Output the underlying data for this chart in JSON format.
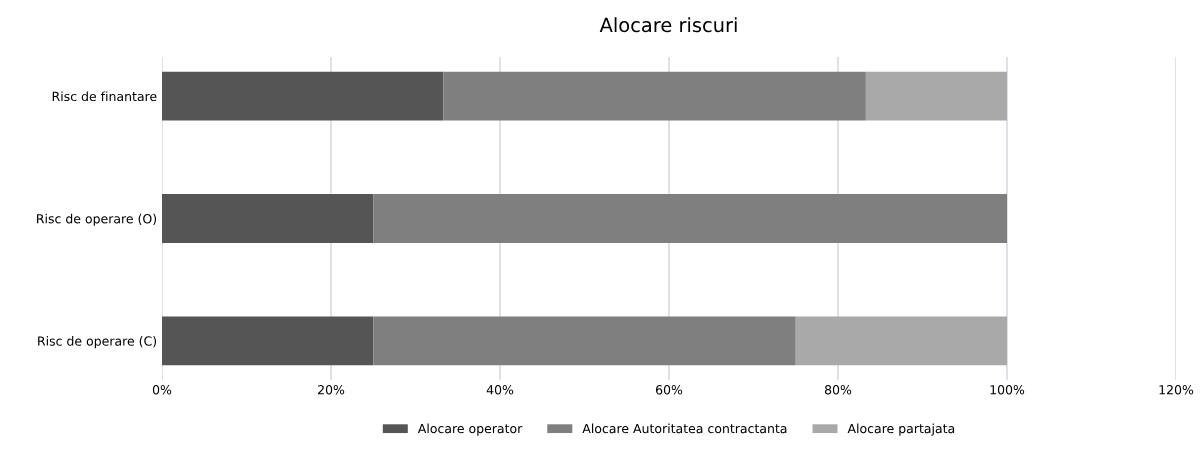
{
  "chart_data": {
    "type": "bar",
    "title": "Alocare riscuri",
    "orientation": "horizontal",
    "stacked": true,
    "categories": [
      "Risc de finantare",
      "Risc de operare (O)",
      "Risc de operare (C)"
    ],
    "series": [
      {
        "name": "Alocare operator",
        "color": "#555555",
        "values": [
          33.3,
          25,
          25
        ]
      },
      {
        "name": "Alocare Autoritatea contractanta",
        "color": "#7f7f7f",
        "values": [
          50,
          75,
          50
        ]
      },
      {
        "name": "Alocare partajata",
        "color": "#a9a9a9",
        "values": [
          16.7,
          0,
          25
        ]
      }
    ],
    "xlim": [
      0,
      120
    ],
    "xticks": [
      {
        "value": 0,
        "label": "0%"
      },
      {
        "value": 20,
        "label": "20%"
      },
      {
        "value": 40,
        "label": "40%"
      },
      {
        "value": 60,
        "label": "60%"
      },
      {
        "value": 80,
        "label": "80%"
      },
      {
        "value": 100,
        "label": "100%"
      },
      {
        "value": 120,
        "label": "120%"
      }
    ],
    "grid": "x",
    "legend": "bottom"
  }
}
